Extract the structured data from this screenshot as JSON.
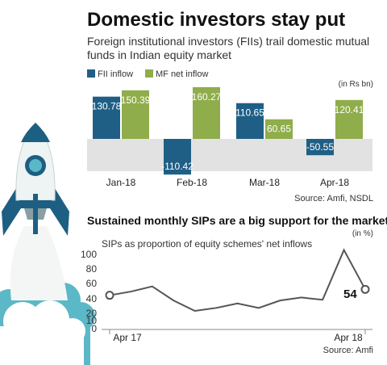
{
  "title": "Domestic investors stay put",
  "subtitle_lines": [
    "Foreign institutional investors (FIIs) trail domestic mutual",
    "funds in Indian equity market"
  ],
  "colors": {
    "fii": "#1f5f86",
    "mf": "#8fad4a",
    "line": "#555555",
    "rocket_body": "#eef3f4",
    "rocket_blue": "#1d5f83",
    "smoke": "#5bb8c6"
  },
  "icons": [
    "rocket-icon",
    "smoke-cloud-icon"
  ],
  "chart_data": [
    {
      "type": "bar",
      "unit_note": "(in Rs bn)",
      "categories": [
        "Jan-18",
        "Feb-18",
        "Mar-18",
        "Apr-18"
      ],
      "series": [
        {
          "name": "FII inflow",
          "values": [
            130.78,
            -110.42,
            110.65,
            -50.55
          ]
        },
        {
          "name": "MF net inflow",
          "values": [
            150.39,
            160.27,
            60.65,
            120.41
          ]
        }
      ],
      "data_labels": [
        [
          "130.78",
          "-110.42",
          "110.65",
          "-50.55"
        ],
        [
          "150.39",
          "160.27",
          "60.65",
          "120.41"
        ]
      ],
      "ylim": [
        -160,
        170
      ],
      "legend": "top-left",
      "grid": false,
      "source": "Source: Amfi, NSDL"
    },
    {
      "type": "line",
      "title": "Sustained monthly SIPs are a big support for the market",
      "ylabel": "SIPs as proportion of equity schemes' net inflows",
      "unit_note": "(in %)",
      "x": [
        "Apr 17",
        "May 17",
        "Jun 17",
        "Jul 17",
        "Aug 17",
        "Sep 17",
        "Oct 17",
        "Nov 17",
        "Dec 17",
        "Jan 18",
        "Feb 18",
        "Mar 18",
        "Apr 18"
      ],
      "values": [
        46,
        51,
        58,
        39,
        25,
        29,
        35,
        29,
        39,
        43,
        40,
        107,
        54
      ],
      "x_tick_labels": [
        "Apr 17",
        "Apr 18"
      ],
      "y_ticks": [
        0,
        10,
        20,
        40,
        60,
        80,
        100
      ],
      "ylim": [
        0,
        120
      ],
      "end_label": "54",
      "grid": false,
      "source": "Source: Amfi"
    }
  ]
}
